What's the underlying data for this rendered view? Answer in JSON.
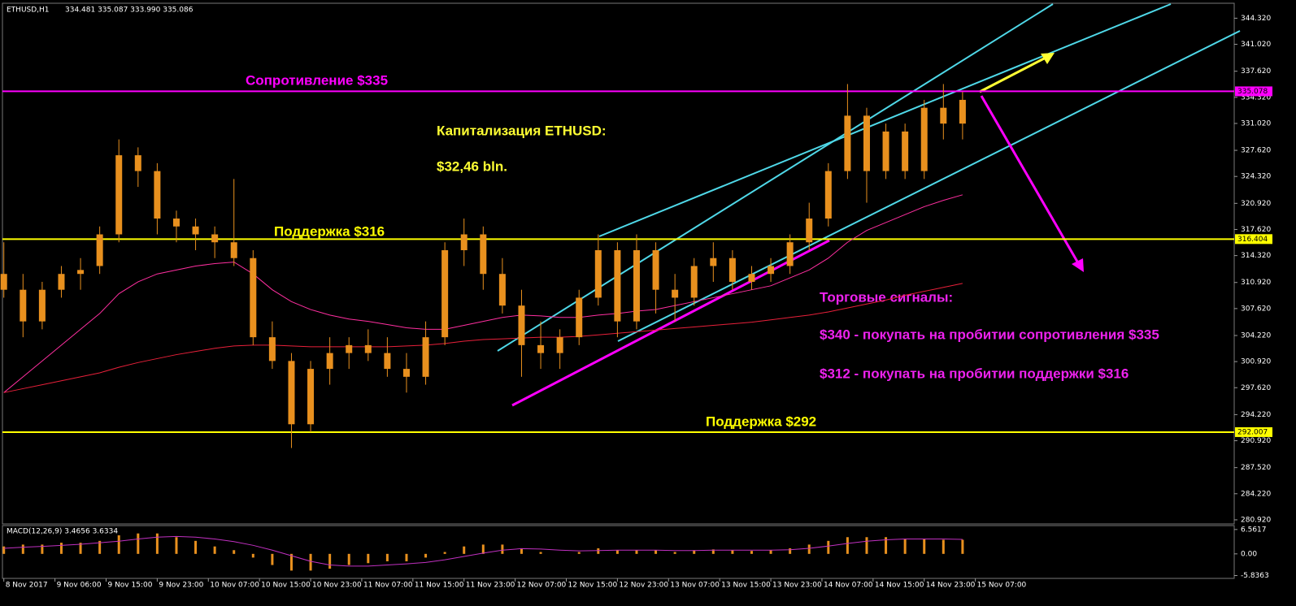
{
  "chart_data": {
    "type": "candlestick",
    "title": "ETHUSD,H1",
    "quote": "334.481 335.087 333.990 335.086",
    "candle_color": "#e8901e",
    "x": [
      0,
      3,
      6,
      9,
      12,
      15,
      18,
      21,
      24,
      27,
      30,
      33,
      36,
      39,
      42,
      45,
      48,
      51,
      54,
      57,
      60,
      63,
      66,
      69,
      72,
      75,
      78,
      81,
      84,
      87,
      90,
      93,
      96,
      99,
      102,
      105,
      108,
      111,
      114,
      117,
      120,
      123,
      126,
      129,
      132,
      135,
      138,
      141,
      144,
      147,
      150
    ],
    "candles": [
      [
        312,
        316,
        309,
        310
      ],
      [
        310,
        312,
        304,
        306
      ],
      [
        306,
        311,
        305,
        310
      ],
      [
        310,
        313,
        309,
        312
      ],
      [
        312,
        314,
        310,
        312.5
      ],
      [
        313,
        318,
        312,
        317
      ],
      [
        317,
        329,
        316,
        327
      ],
      [
        327,
        328,
        323,
        325
      ],
      [
        325,
        326,
        317,
        319
      ],
      [
        319,
        320,
        316,
        318
      ],
      [
        318,
        319,
        315,
        317
      ],
      [
        317,
        318,
        314,
        316
      ],
      [
        316,
        324,
        313,
        314
      ],
      [
        314,
        315,
        303,
        304
      ],
      [
        304,
        306,
        300,
        301
      ],
      [
        301,
        302,
        290,
        293
      ],
      [
        293,
        301,
        292,
        300
      ],
      [
        300,
        304,
        298,
        302
      ],
      [
        302,
        304,
        300,
        303
      ],
      [
        303,
        305,
        301,
        302
      ],
      [
        302,
        304,
        299,
        300
      ],
      [
        300,
        302,
        297,
        299
      ],
      [
        299,
        306,
        298,
        304
      ],
      [
        304,
        316,
        303,
        315
      ],
      [
        315,
        319,
        313,
        317
      ],
      [
        317,
        318,
        310,
        312
      ],
      [
        312,
        314,
        307,
        308
      ],
      [
        308,
        310,
        299,
        303
      ],
      [
        303,
        306,
        300,
        302
      ],
      [
        302,
        305,
        300,
        304
      ],
      [
        304,
        310,
        303,
        309
      ],
      [
        309,
        317,
        308,
        315
      ],
      [
        315,
        316,
        304,
        306
      ],
      [
        306,
        317,
        305,
        315
      ],
      [
        315,
        316,
        307,
        310
      ],
      [
        310,
        312,
        306,
        309
      ],
      [
        309,
        314,
        308,
        313
      ],
      [
        313,
        316,
        311,
        314
      ],
      [
        314,
        315,
        310,
        311
      ],
      [
        311,
        313,
        310,
        312
      ],
      [
        312,
        314,
        311,
        313
      ],
      [
        313,
        317,
        312,
        316
      ],
      [
        316,
        321,
        315,
        319
      ],
      [
        319,
        326,
        318,
        325
      ],
      [
        325,
        336,
        324,
        332
      ],
      [
        332,
        333,
        321,
        325
      ],
      [
        325,
        331,
        324,
        330
      ],
      [
        330,
        331,
        324,
        325
      ],
      [
        325,
        334,
        324,
        333
      ],
      [
        333,
        336,
        329,
        331
      ],
      [
        331,
        335,
        329,
        334
      ]
    ],
    "lines": [
      {
        "color": "#ff2fa0",
        "values": [
          297,
          299,
          301,
          303,
          305,
          307,
          309.5,
          311,
          312,
          312.5,
          313,
          313.3,
          313.5,
          312,
          310,
          308.5,
          307.5,
          306.8,
          306.3,
          306,
          305.6,
          305.2,
          305,
          305,
          305.5,
          306,
          306.5,
          306.8,
          306.7,
          306.5,
          306.5,
          306.8,
          307,
          307.3,
          307.5,
          308,
          308.5,
          309,
          309.5,
          310,
          310.5,
          311.5,
          312.5,
          314,
          316,
          317.5,
          318.5,
          319.5,
          320.5,
          321.3,
          322
        ]
      },
      {
        "color": "#e8203a",
        "values": [
          297,
          297.5,
          298,
          298.5,
          299,
          299.5,
          300.2,
          300.8,
          301.3,
          301.8,
          302.2,
          302.6,
          302.9,
          303,
          303,
          302.9,
          302.8,
          302.8,
          302.8,
          302.8,
          302.8,
          302.9,
          303,
          303.2,
          303.5,
          303.7,
          303.8,
          303.9,
          304,
          304,
          304.1,
          304.3,
          304.5,
          304.7,
          304.9,
          305.1,
          305.3,
          305.5,
          305.7,
          305.9,
          306.2,
          306.5,
          306.8,
          307.2,
          307.7,
          308.2,
          308.7,
          309.3,
          309.8,
          310.3,
          310.8
        ]
      }
    ],
    "xlim": [
      -0.6,
      192.5
    ],
    "ylim": [
      280.4,
      345.8
    ],
    "yticks": [
      {
        "value": 344.32,
        "label": "344.320"
      },
      {
        "value": 341.02,
        "label": "341.020"
      },
      {
        "value": 337.62,
        "label": "337.620"
      },
      {
        "value": 334.32,
        "label": "334.320"
      },
      {
        "value": 331.02,
        "label": "331.020"
      },
      {
        "value": 327.62,
        "label": "327.620"
      },
      {
        "value": 324.32,
        "label": "324.320"
      },
      {
        "value": 320.92,
        "label": "320.920"
      },
      {
        "value": 317.62,
        "label": "317.620"
      },
      {
        "value": 314.32,
        "label": "314.320"
      },
      {
        "value": 310.92,
        "label": "310.920"
      },
      {
        "value": 307.62,
        "label": "307.620"
      },
      {
        "value": 304.22,
        "label": "304.220"
      },
      {
        "value": 300.92,
        "label": "300.920"
      },
      {
        "value": 297.62,
        "label": "297.620"
      },
      {
        "value": 294.22,
        "label": "294.220"
      },
      {
        "value": 290.92,
        "label": "290.920"
      },
      {
        "value": 287.52,
        "label": "287.520"
      },
      {
        "value": 284.22,
        "label": "284.220"
      },
      {
        "value": 280.92,
        "label": "280.920"
      }
    ],
    "xticks": [
      {
        "value": 0,
        "label": "8 Nov 2017"
      },
      {
        "value": 8,
        "label": "9 Nov 06:00"
      },
      {
        "value": 16,
        "label": "9 Nov 15:00"
      },
      {
        "value": 24,
        "label": "9 Nov 23:00"
      },
      {
        "value": 32,
        "label": "10 Nov 07:00"
      },
      {
        "value": 40,
        "label": "10 Nov 15:00"
      },
      {
        "value": 48,
        "label": "10 Nov 23:00"
      },
      {
        "value": 56,
        "label": "11 Nov 07:00"
      },
      {
        "value": 64,
        "label": "11 Nov 15:00"
      },
      {
        "value": 72,
        "label": "11 Nov 23:00"
      },
      {
        "value": 80,
        "label": "12 Nov 07:00"
      },
      {
        "value": 88,
        "label": "12 Nov 15:00"
      },
      {
        "value": 96,
        "label": "12 Nov 23:00"
      },
      {
        "value": 104,
        "label": "13 Nov 07:00"
      },
      {
        "value": 112,
        "label": "13 Nov 15:00"
      },
      {
        "value": 120,
        "label": "13 Nov 23:00"
      },
      {
        "value": 128,
        "label": "14 Nov 07:00"
      },
      {
        "value": 136,
        "label": "14 Nov 15:00"
      },
      {
        "value": 144,
        "label": "14 Nov 23:00"
      },
      {
        "value": 152,
        "label": "15 Nov 07:00"
      }
    ],
    "levels": [
      {
        "value": 335.078,
        "label": "335.078",
        "color": "#ff00ff",
        "text": "Сопротивление $335"
      },
      {
        "value": 316.404,
        "label": "316.404",
        "color": "#ffff00",
        "text": "Поддержка $316"
      },
      {
        "value": 292.007,
        "label": "292.007",
        "color": "#ffff00",
        "text": "Поддержка $292"
      }
    ],
    "annotations": [
      {
        "text": "Капитализация ETHUSD:",
        "color": "#ffff33"
      },
      {
        "text": "$32,46 bln.",
        "color": "#ffff33"
      },
      {
        "text": "Торговые сигналы:",
        "color": "#ee22ee"
      },
      {
        "text": "$340 - покупать на пробитии сопротивления $335",
        "color": "#ee22ee"
      },
      {
        "text": "$312 - покупать на пробитии поддержки $316",
        "color": "#ee22ee"
      }
    ],
    "macd": {
      "title": "MACD(12,26,9) 3.4656 3.6334",
      "hist_color": "#e8901e",
      "signal_color": "#c030c0",
      "ylim": [
        -6.6,
        7.4
      ],
      "yticks": [
        6.5617,
        {
          "value": 0,
          "label": "0.00"
        },
        -5.8363
      ],
      "values": [
        2,
        2.5,
        2.5,
        3,
        3,
        3.5,
        5,
        5.5,
        5.5,
        4.5,
        3.5,
        2,
        1,
        -1,
        -3,
        -4.5,
        -4.5,
        -4,
        -3,
        -2.5,
        -2,
        -2,
        -1,
        0.5,
        2,
        2.5,
        2.5,
        1.5,
        0.5,
        0,
        0.5,
        1.5,
        1,
        1,
        1,
        0.5,
        1,
        1.2,
        1,
        0.8,
        1,
        1.5,
        2.5,
        3.5,
        4.5,
        4.5,
        4.5,
        4,
        4,
        3.8,
        3.8
      ],
      "signal": [
        1.5,
        1.8,
        2,
        2.3,
        2.6,
        3,
        3.4,
        4,
        4.5,
        4.7,
        4.5,
        4,
        3.3,
        2.3,
        1,
        -0.5,
        -2,
        -3,
        -3.3,
        -3.3,
        -3,
        -2.7,
        -2.3,
        -1.6,
        -0.7,
        0.2,
        1,
        1.4,
        1.3,
        1,
        0.8,
        0.9,
        1,
        1,
        1,
        0.9,
        0.9,
        1,
        1,
        1,
        1,
        1.1,
        1.5,
        2.1,
        2.8,
        3.4,
        3.8,
        4,
        4,
        4,
        3.9
      ]
    }
  }
}
